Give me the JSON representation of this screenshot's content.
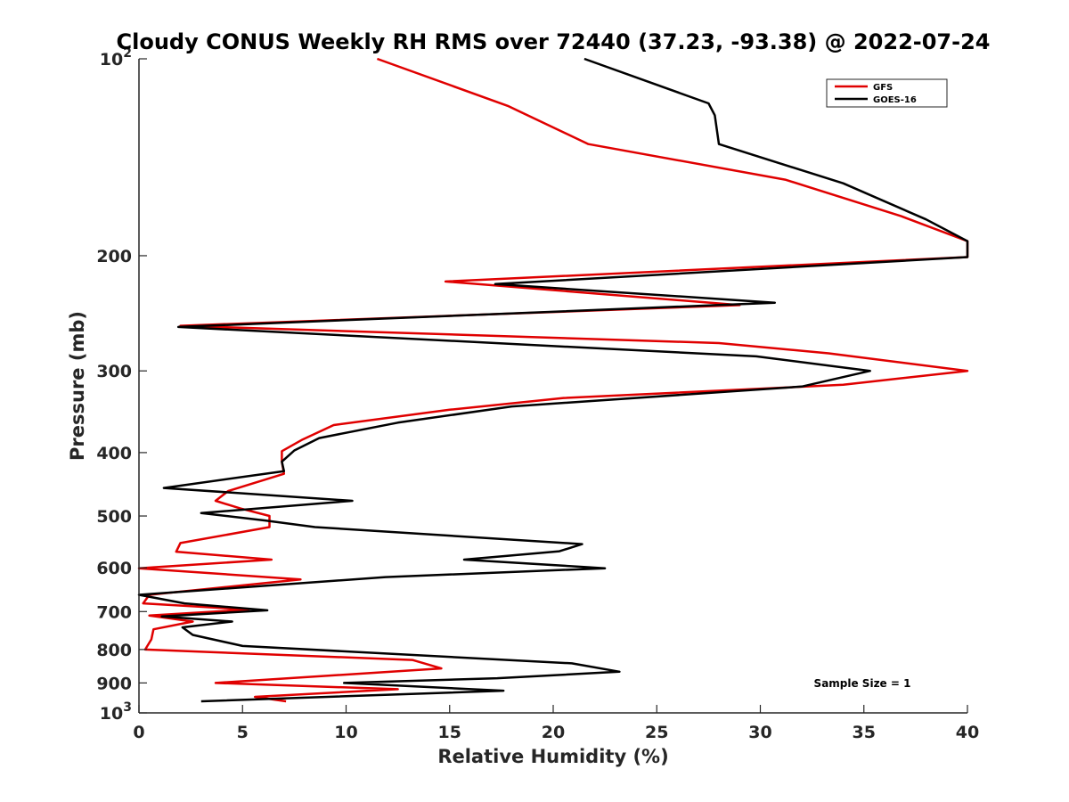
{
  "chart_data": {
    "type": "line",
    "title": "Cloudy CONUS Weekly RH RMS over 72440 (37.23, -93.38) @ 2022-07-24",
    "xlabel": "Relative Humidity (%)",
    "ylabel": "Pressure (mb)",
    "xlim": [
      0,
      40
    ],
    "ylim": [
      100,
      1000
    ],
    "y_scale": "log",
    "y_reversed": true,
    "grid": false,
    "legend_location": "top-right",
    "x_ticks": [
      0,
      5,
      10,
      15,
      20,
      25,
      30,
      35,
      40
    ],
    "x_tick_labels": [
      "0",
      "5",
      "10",
      "15",
      "20",
      "25",
      "30",
      "35",
      "40"
    ],
    "y_ticks": [
      100,
      200,
      300,
      400,
      500,
      600,
      700,
      800,
      900,
      1000
    ],
    "y_tick_labels": [
      {
        "base": "10",
        "exp": "2"
      },
      {
        "base": "200",
        "exp": ""
      },
      {
        "base": "300",
        "exp": ""
      },
      {
        "base": "400",
        "exp": ""
      },
      {
        "base": "500",
        "exp": ""
      },
      {
        "base": "600",
        "exp": ""
      },
      {
        "base": "700",
        "exp": ""
      },
      {
        "base": "800",
        "exp": ""
      },
      {
        "base": "900",
        "exp": ""
      },
      {
        "base": "10",
        "exp": "3"
      }
    ],
    "annotation": "Sample Size = 1",
    "series": [
      {
        "name": "GFS",
        "color": "#e00000",
        "points": [
          [
            11.5,
            100
          ],
          [
            17.8,
            118
          ],
          [
            21.7,
            135
          ],
          [
            31.2,
            153
          ],
          [
            36.8,
            174
          ],
          [
            40.0,
            190
          ],
          [
            40.0,
            201
          ],
          [
            14.8,
            219
          ],
          [
            29.0,
            238
          ],
          [
            2.0,
            256
          ],
          [
            28.0,
            272
          ],
          [
            33.3,
            282
          ],
          [
            40.0,
            300
          ],
          [
            34.0,
            315
          ],
          [
            20.5,
            330
          ],
          [
            15.0,
            344
          ],
          [
            9.4,
            363
          ],
          [
            7.9,
            382
          ],
          [
            6.9,
            398
          ],
          [
            6.9,
            413
          ],
          [
            7.0,
            431
          ],
          [
            4.3,
            458
          ],
          [
            3.7,
            474
          ],
          [
            4.9,
            487
          ],
          [
            6.3,
            500
          ],
          [
            6.3,
            520
          ],
          [
            2.0,
            550
          ],
          [
            1.8,
            567
          ],
          [
            6.4,
            583
          ],
          [
            0.0,
            601
          ],
          [
            7.8,
            625
          ],
          [
            0.5,
            660
          ],
          [
            0.2,
            680
          ],
          [
            5.3,
            695
          ],
          [
            0.5,
            710
          ],
          [
            2.6,
            725
          ],
          [
            0.7,
            745
          ],
          [
            0.6,
            772
          ],
          [
            0.3,
            800
          ],
          [
            13.2,
            830
          ],
          [
            14.6,
            855
          ],
          [
            3.7,
            900
          ],
          [
            12.5,
            920
          ],
          [
            5.6,
            945
          ],
          [
            7.1,
            960
          ]
        ]
      },
      {
        "name": "GOES-16",
        "color": "#000000",
        "points": [
          [
            21.5,
            100
          ],
          [
            27.5,
            117
          ],
          [
            27.8,
            122
          ],
          [
            28.0,
            135
          ],
          [
            34.0,
            155
          ],
          [
            38.0,
            176
          ],
          [
            40.0,
            190
          ],
          [
            40.0,
            201
          ],
          [
            17.2,
            221
          ],
          [
            30.7,
            236
          ],
          [
            1.9,
            257
          ],
          [
            29.8,
            285
          ],
          [
            35.3,
            300
          ],
          [
            32.0,
            317
          ],
          [
            18.0,
            340
          ],
          [
            12.5,
            360
          ],
          [
            8.7,
            380
          ],
          [
            7.5,
            397
          ],
          [
            6.9,
            413
          ],
          [
            7.0,
            427
          ],
          [
            1.2,
            453
          ],
          [
            10.3,
            474
          ],
          [
            3.0,
            495
          ],
          [
            6.1,
            508
          ],
          [
            8.5,
            520
          ],
          [
            21.4,
            552
          ],
          [
            20.3,
            566
          ],
          [
            15.7,
            583
          ],
          [
            22.5,
            601
          ],
          [
            11.9,
            620
          ],
          [
            0.0,
            660
          ],
          [
            2.2,
            680
          ],
          [
            6.2,
            697
          ],
          [
            1.1,
            712
          ],
          [
            4.5,
            725
          ],
          [
            2.1,
            740
          ],
          [
            2.6,
            760
          ],
          [
            5.0,
            790
          ],
          [
            20.9,
            840
          ],
          [
            23.2,
            865
          ],
          [
            17.3,
            885
          ],
          [
            9.9,
            900
          ],
          [
            17.6,
            925
          ],
          [
            3.0,
            960
          ]
        ]
      }
    ]
  }
}
